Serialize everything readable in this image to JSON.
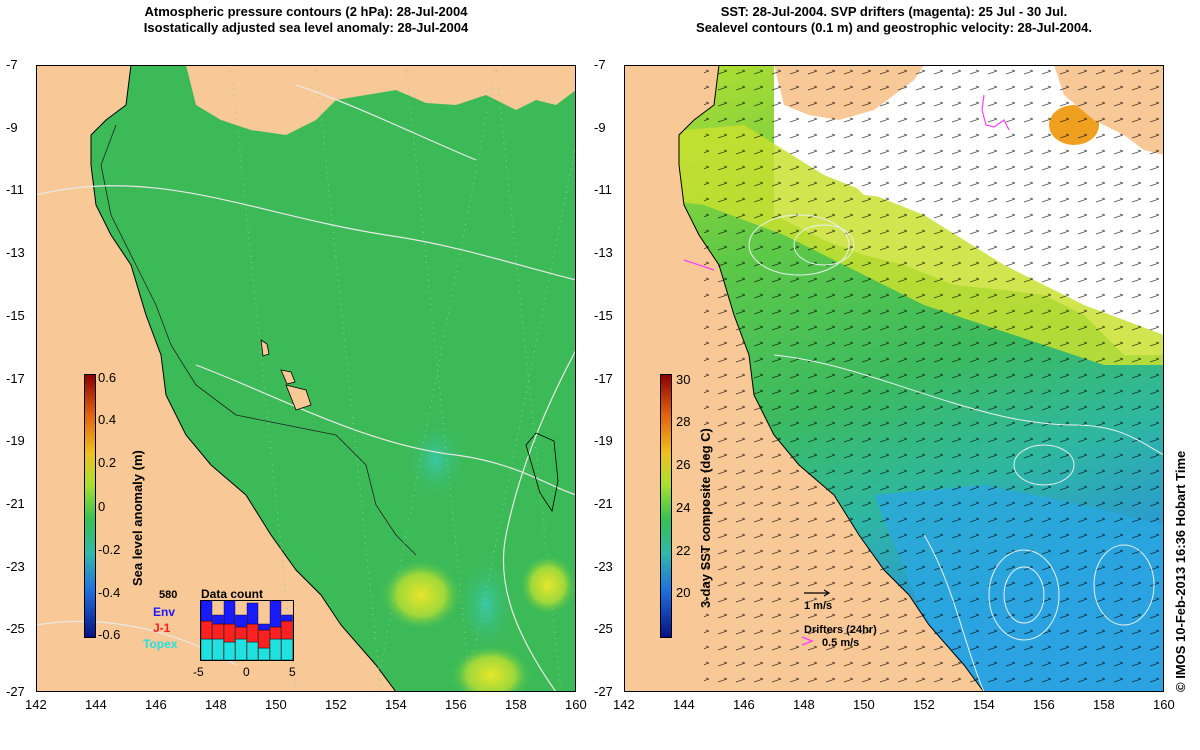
{
  "left_panel": {
    "title_line1": "Atmospheric pressure contours (2 hPa): 28-Jul-2004",
    "title_line2": "Isostatically adjusted sea level anomaly: 28-Jul-2004",
    "colorbar": {
      "label": "Sea level anomaly (m)",
      "ticks": [
        "0.6",
        "0.4",
        "0.2",
        "0",
        "-0.2",
        "-0.4",
        "-0.6"
      ]
    },
    "data_count": {
      "title": "Data count",
      "max_label": "580",
      "legend": [
        {
          "name": "Env",
          "color": "#1a1aff"
        },
        {
          "name": "J-1",
          "color": "#ff2020"
        },
        {
          "name": "Topex",
          "color": "#20e0e0"
        }
      ],
      "x_ticks": [
        "-5",
        "0",
        "5"
      ],
      "bars": [
        {
          "topex": 0.35,
          "j1": 0.3,
          "env": 0.35
        },
        {
          "topex": 0.35,
          "j1": 0.25,
          "env": 0.15
        },
        {
          "topex": 0.3,
          "j1": 0.3,
          "env": 0.4
        },
        {
          "topex": 0.35,
          "j1": 0.2,
          "env": 0.2
        },
        {
          "topex": 0.3,
          "j1": 0.3,
          "env": 0.35
        },
        {
          "topex": 0.2,
          "j1": 0.3,
          "env": 0.1
        },
        {
          "topex": 0.35,
          "j1": 0.2,
          "env": 0.45
        },
        {
          "topex": 0.35,
          "j1": 0.3,
          "env": 0.1
        }
      ]
    }
  },
  "right_panel": {
    "title_line1": "SST: 28-Jul-2004. SVP drifters (magenta): 25 Jul - 30 Jul.",
    "title_line2": "Sealevel contours (0.1 m) and geostrophic velocity: 28-Jul-2004.",
    "colorbar": {
      "label": "3-day SST composite (deg C)",
      "ticks": [
        "30",
        "28",
        "26",
        "24",
        "22",
        "20"
      ]
    },
    "velocity_scale": "1 m/s",
    "drifters_label": "Drifters (24hr)",
    "drifter_speed": "0.5 m/s"
  },
  "axes": {
    "x_ticks": [
      "142",
      "144",
      "146",
      "148",
      "150",
      "152",
      "154",
      "156",
      "158",
      "160"
    ],
    "y_ticks": [
      "-7",
      "-9",
      "-11",
      "-13",
      "-15",
      "-17",
      "-19",
      "-21",
      "-23",
      "-25",
      "-27"
    ]
  },
  "copyright": "© IMOS 10-Feb-2013 16:36 Hobart Time",
  "colors": {
    "land": "#f8c896",
    "ocean_green": "#3cc25a",
    "ocean_blue": "#2aa0e0",
    "drifter": "#ff40ff"
  }
}
